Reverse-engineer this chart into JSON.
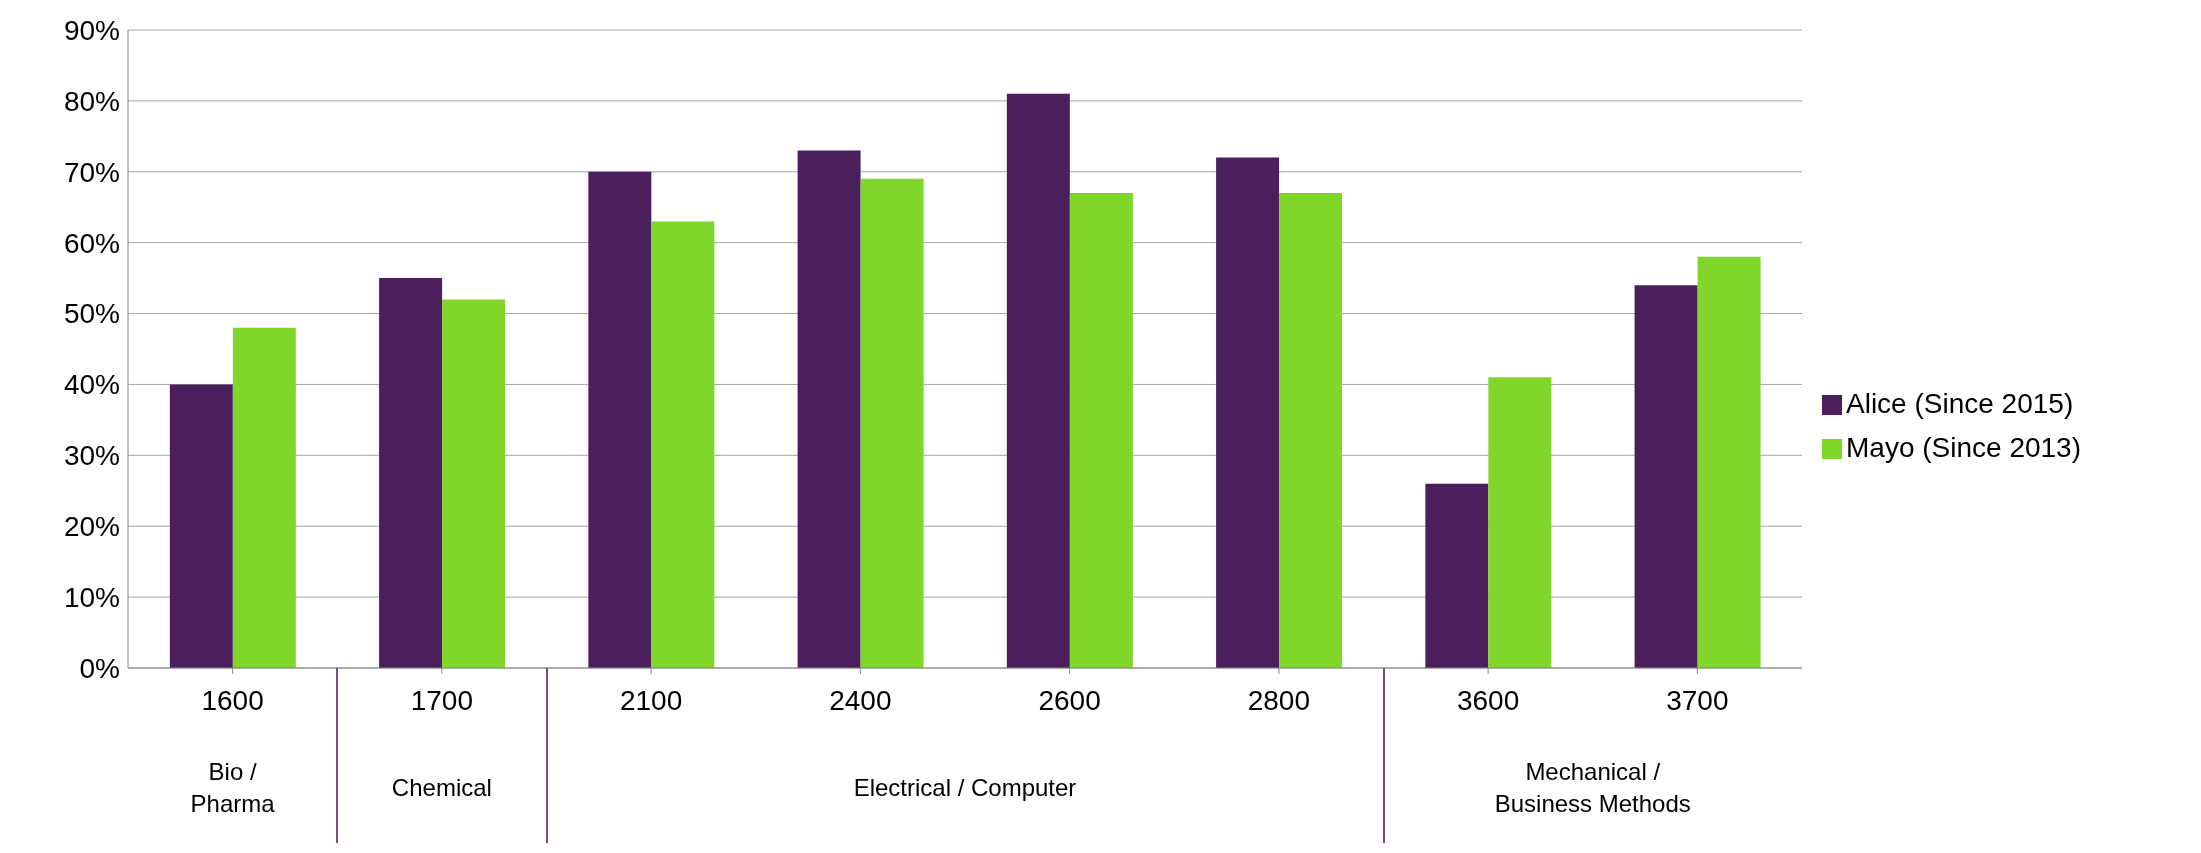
{
  "chart_data": {
    "type": "bar",
    "categories": [
      "1600",
      "1700",
      "2100",
      "2400",
      "2600",
      "2800",
      "3600",
      "3700"
    ],
    "series": [
      {
        "name": "Alice (Since 2015)",
        "color": "#4b1e5c",
        "values": [
          40,
          55,
          70,
          73,
          81,
          72,
          26,
          54
        ]
      },
      {
        "name": "Mayo (Since 2013)",
        "color": "#80d62a",
        "values": [
          48,
          52,
          63,
          69,
          67,
          67,
          41,
          58
        ]
      }
    ],
    "ylim": [
      0,
      90
    ],
    "yticks": [
      {
        "value": 0,
        "label": "0%"
      },
      {
        "value": 10,
        "label": "10%"
      },
      {
        "value": 20,
        "label": "20%"
      },
      {
        "value": 30,
        "label": "30%"
      },
      {
        "value": 40,
        "label": "40%"
      },
      {
        "value": 50,
        "label": "50%"
      },
      {
        "value": 60,
        "label": "60%"
      },
      {
        "value": 70,
        "label": "70%"
      },
      {
        "value": 80,
        "label": "80%"
      },
      {
        "value": 90,
        "label": "90%"
      }
    ],
    "grid": "y",
    "legend": "right",
    "annotations": [
      "Bio /\nPharma",
      "Chemical",
      "Electrical / Computer",
      "Mechanical /\nBusiness Methods"
    ]
  }
}
